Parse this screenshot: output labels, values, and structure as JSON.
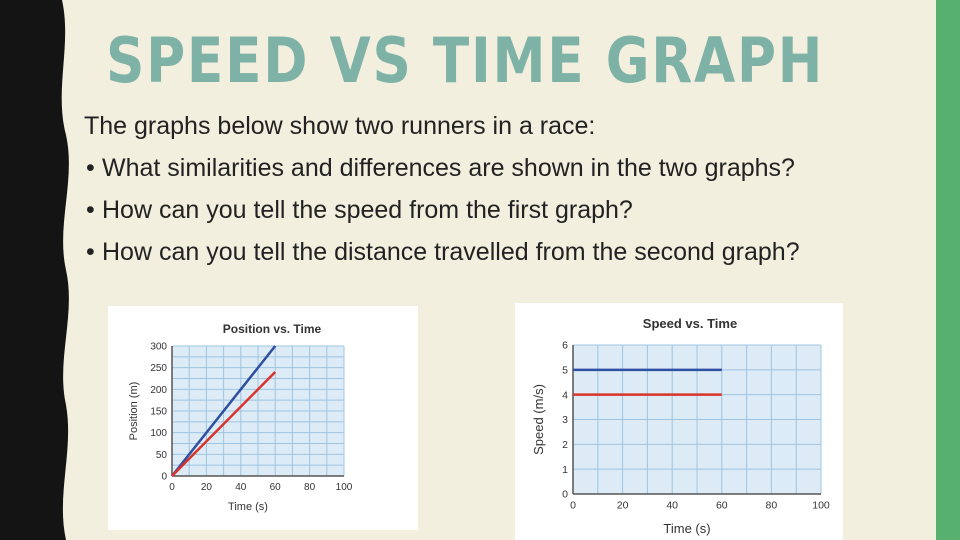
{
  "slide": {
    "title": "SPEED VS TIME GRAPH",
    "intro": "The graphs below show two runners in a race:",
    "bullets": [
      "What similarities and differences are shown in the two graphs?",
      "How can you tell the speed from the first graph?",
      "How can you tell the distance travelled from the second graph?"
    ],
    "bullet_glyph": "•"
  },
  "colors": {
    "background": "#f3efdf",
    "title": "#7fb2a6",
    "left_border": "#141414",
    "right_bar": "#57b06e",
    "grid_fill": "#dcebf6",
    "grid_line": "#9fc4e2",
    "series_blue": "#2f4fa0",
    "series_red": "#d9332b"
  },
  "chart_data": [
    {
      "type": "line",
      "title": "Position vs. Time",
      "xlabel": "Time (s)",
      "ylabel": "Position (m)",
      "xlim": [
        0,
        100
      ],
      "ylim": [
        0,
        300
      ],
      "x_ticks": [
        0,
        20,
        40,
        60,
        80,
        100
      ],
      "y_ticks": [
        0,
        50,
        100,
        150,
        200,
        250,
        300
      ],
      "grid": true,
      "series": [
        {
          "color": "#2f4fa0",
          "x": [
            0,
            60
          ],
          "y": [
            0,
            300
          ]
        },
        {
          "color": "#d9332b",
          "x": [
            0,
            60
          ],
          "y": [
            0,
            240
          ]
        }
      ]
    },
    {
      "type": "line",
      "title": "Speed vs. Time",
      "xlabel": "Time (s)",
      "ylabel": "Speed (m/s)",
      "xlim": [
        0,
        100
      ],
      "ylim": [
        0,
        6
      ],
      "x_ticks": [
        0,
        20,
        40,
        60,
        80,
        100
      ],
      "y_ticks": [
        0,
        1,
        2,
        3,
        4,
        5,
        6
      ],
      "grid": true,
      "series": [
        {
          "color": "#2f4fa0",
          "x": [
            0,
            60
          ],
          "y": [
            5,
            5
          ]
        },
        {
          "color": "#d9332b",
          "x": [
            0,
            60
          ],
          "y": [
            4,
            4
          ]
        }
      ]
    }
  ]
}
